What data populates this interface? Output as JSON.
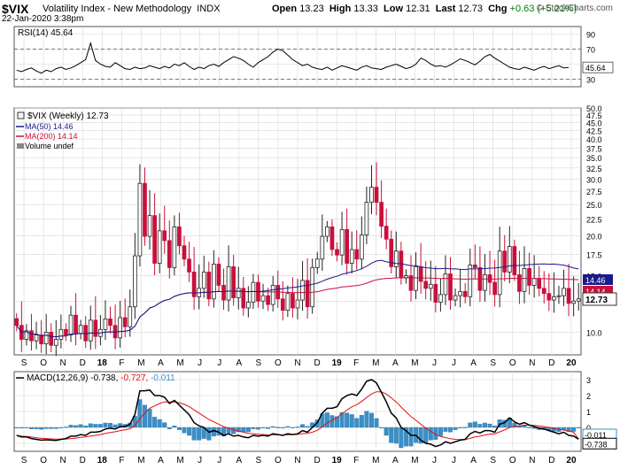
{
  "header": {
    "symbol": "$VIX",
    "name": "Volatility Index - New Methodology",
    "exchange": "INDX",
    "datetime": "22-Jan-2020 3:38pm",
    "open_label": "Open",
    "open": "13.23",
    "high_label": "High",
    "high": "13.33",
    "low_label": "Low",
    "low": "12.31",
    "last_label": "Last",
    "last": "12.73",
    "chg_label": "Chg",
    "chg": "+0.63 (+5.21%)",
    "source": "© StockCharts.com"
  },
  "colors": {
    "up": "#222222",
    "down": "#c8103c",
    "ma50": "#1a1a8c",
    "ma200": "#c8103c",
    "macd": "#000000",
    "signal": "#e01010",
    "hist": "#3a8fc8",
    "grid": "#d8d8d8"
  },
  "chart_data": [
    {
      "type": "line",
      "title": "RSI(14) 45.64",
      "legend_label": "RSI(14)",
      "legend_value": "45.64",
      "yticks": [
        "90",
        "70",
        "50",
        "30"
      ],
      "ylim": [
        20,
        100
      ],
      "reference_lines": [
        70,
        30
      ],
      "last_value_label": "45.64",
      "series": [
        {
          "name": "RSI(14)",
          "values": [
            42,
            40,
            43,
            45,
            41,
            38,
            42,
            40,
            44,
            46,
            43,
            45,
            48,
            52,
            56,
            78,
            55,
            50,
            47,
            46,
            52,
            48,
            44,
            43,
            46,
            44,
            45,
            48,
            46,
            44,
            47,
            45,
            50,
            48,
            52,
            47,
            43,
            46,
            44,
            48,
            50,
            47,
            52,
            56,
            60,
            58,
            55,
            50,
            46,
            52,
            56,
            60,
            66,
            70,
            68,
            62,
            56,
            52,
            48,
            50,
            46,
            44,
            43,
            46,
            42,
            45,
            48,
            46,
            44,
            42,
            46,
            48,
            45,
            44,
            43,
            46,
            48,
            50,
            47,
            44,
            46,
            50,
            58,
            55,
            50,
            47,
            48,
            46,
            49,
            53,
            57,
            55,
            52,
            49,
            54,
            60,
            63,
            58,
            54,
            50,
            46,
            44,
            43,
            46,
            44,
            42,
            45,
            47,
            44,
            46,
            48,
            45,
            45.64
          ]
        }
      ]
    },
    {
      "type": "candlestick",
      "title": "$VIX (Weekly) 12.73",
      "legend": [
        {
          "label": "$VIX (Weekly) 12.73"
        },
        {
          "label": "MA(50) 14.46"
        },
        {
          "label": "MA(200) 14.14"
        },
        {
          "label": "Volume undef"
        }
      ],
      "y_scale": "log",
      "ylim": [
        8.5,
        50
      ],
      "yticks": [
        "50.0",
        "47.5",
        "45.0",
        "42.5",
        "40.0",
        "37.5",
        "35.0",
        "32.5",
        "30.0",
        "27.5",
        "25.0",
        "22.5",
        "20.0",
        "17.5",
        "15.0",
        "12.5",
        "10.0"
      ],
      "right_labels": {
        "ma50": "14.46",
        "ma200": "14.14",
        "last": "12.73"
      },
      "x_start": "2017-09",
      "closes": [
        10.5,
        9.5,
        10.1,
        9.4,
        9.8,
        9.2,
        10.0,
        9.1,
        9.5,
        10.2,
        9.8,
        11.3,
        9.9,
        10.5,
        9.4,
        10.9,
        9.7,
        10.2,
        11.0,
        10.5,
        9.6,
        11.1,
        10.4,
        12.0,
        17.3,
        29.1,
        19.9,
        23.1,
        16.4,
        20.7,
        19.3,
        15.9,
        21.3,
        18.6,
        16.9,
        15.4,
        12.9,
        13.7,
        15.4,
        12.7,
        16.3,
        14.0,
        12.6,
        16.0,
        12.8,
        13.7,
        11.9,
        12.4,
        14.3,
        12.5,
        13.0,
        12.2,
        14.0,
        12.7,
        11.7,
        13.2,
        11.9,
        12.6,
        14.5,
        12.0,
        15.9,
        16.9,
        19.9,
        21.3,
        18.1,
        17.4,
        20.9,
        16.4,
        18.1,
        16.9,
        20.1,
        25.4,
        28.3,
        25.4,
        21.4,
        19.5,
        16.0,
        17.9,
        14.8,
        15.0,
        13.5,
        16.0,
        14.4,
        13.7,
        14.1,
        12.4,
        13.1,
        15.2,
        12.6,
        13.0,
        13.4,
        12.9,
        16.2,
        15.9,
        13.5,
        15.1,
        14.3,
        13.1,
        17.9,
        15.4,
        18.5,
        15.1,
        13.4,
        15.8,
        14.0,
        14.7,
        13.7,
        13.2,
        12.6,
        12.9,
        13.0,
        13.7,
        12.3,
        12.5,
        12.7
      ]
    },
    {
      "type": "line",
      "title": "MACD(12,26,9) -0.738, -0.727, -0.011",
      "legend_label": "MACD(12,26,9)",
      "legend_values": [
        "-0.738",
        "-0.727",
        "-0.011"
      ],
      "yticks": [
        "3",
        "2",
        "1",
        "0",
        "-1"
      ],
      "ylim": [
        -1.5,
        3.5
      ],
      "right_labels": {
        "hist": "-0.011",
        "macd": "-0.738"
      },
      "series": [
        {
          "name": "MACD",
          "values": [
            -0.5,
            -0.6,
            -0.6,
            -0.7,
            -0.75,
            -0.8,
            -0.78,
            -0.8,
            -0.82,
            -0.75,
            -0.7,
            -0.55,
            -0.55,
            -0.45,
            -0.5,
            -0.3,
            -0.3,
            -0.25,
            -0.1,
            -0.05,
            -0.1,
            0.05,
            0.05,
            0.2,
            0.8,
            2.3,
            2.3,
            2.35,
            2.0,
            2.0,
            1.9,
            1.5,
            1.7,
            1.4,
            1.1,
            0.8,
            0.3,
            0.1,
            0.0,
            -0.3,
            -0.2,
            -0.3,
            -0.5,
            -0.4,
            -0.55,
            -0.5,
            -0.6,
            -0.65,
            -0.5,
            -0.55,
            -0.5,
            -0.55,
            -0.4,
            -0.45,
            -0.5,
            -0.4,
            -0.45,
            -0.4,
            -0.2,
            -0.3,
            0.0,
            0.3,
            0.9,
            1.2,
            1.2,
            1.3,
            1.8,
            2.0,
            2.1,
            2.0,
            2.4,
            2.9,
            3.0,
            2.8,
            2.2,
            1.6,
            0.9,
            0.6,
            0.0,
            -0.2,
            -0.5,
            -0.5,
            -0.8,
            -1.0,
            -1.05,
            -1.2,
            -1.1,
            -0.9,
            -1.0,
            -0.9,
            -0.8,
            -0.75,
            -0.4,
            -0.25,
            -0.35,
            -0.2,
            -0.2,
            -0.3,
            0.2,
            0.3,
            0.6,
            0.35,
            0.2,
            0.3,
            0.15,
            0.05,
            -0.05,
            -0.1,
            -0.2,
            -0.3,
            -0.4,
            -0.3,
            -0.5,
            -0.55,
            -0.738
          ]
        },
        {
          "name": "Signal",
          "values": [
            -0.5,
            -0.55,
            -0.57,
            -0.6,
            -0.65,
            -0.68,
            -0.7,
            -0.72,
            -0.74,
            -0.74,
            -0.73,
            -0.7,
            -0.67,
            -0.63,
            -0.6,
            -0.54,
            -0.5,
            -0.45,
            -0.38,
            -0.32,
            -0.27,
            -0.2,
            -0.15,
            -0.08,
            0.1,
            0.55,
            0.9,
            1.2,
            1.35,
            1.5,
            1.6,
            1.6,
            1.6,
            1.55,
            1.45,
            1.3,
            1.1,
            0.9,
            0.7,
            0.5,
            0.35,
            0.2,
            0.05,
            -0.05,
            -0.15,
            -0.22,
            -0.3,
            -0.37,
            -0.4,
            -0.43,
            -0.45,
            -0.47,
            -0.46,
            -0.46,
            -0.47,
            -0.46,
            -0.45,
            -0.44,
            -0.39,
            -0.37,
            -0.3,
            -0.18,
            0.04,
            0.28,
            0.45,
            0.62,
            0.86,
            1.09,
            1.29,
            1.43,
            1.63,
            1.88,
            2.1,
            2.24,
            2.23,
            2.1,
            1.86,
            1.6,
            1.28,
            0.98,
            0.68,
            0.45,
            0.2,
            -0.05,
            -0.25,
            -0.44,
            -0.57,
            -0.64,
            -0.71,
            -0.75,
            -0.76,
            -0.76,
            -0.69,
            -0.6,
            -0.55,
            -0.48,
            -0.42,
            -0.4,
            -0.28,
            -0.16,
            0.0,
            0.07,
            0.1,
            0.14,
            0.14,
            0.12,
            0.09,
            0.05,
            0.0,
            -0.06,
            -0.13,
            -0.16,
            -0.23,
            -0.3,
            -0.727
          ]
        }
      ]
    }
  ],
  "x_axis": {
    "labels": [
      {
        "label": "S",
        "bold": false
      },
      {
        "label": "O",
        "bold": false
      },
      {
        "label": "N",
        "bold": false
      },
      {
        "label": "D",
        "bold": false
      },
      {
        "label": "18",
        "bold": true
      },
      {
        "label": "F",
        "bold": false
      },
      {
        "label": "M",
        "bold": false
      },
      {
        "label": "A",
        "bold": false
      },
      {
        "label": "M",
        "bold": false
      },
      {
        "label": "J",
        "bold": false
      },
      {
        "label": "J",
        "bold": false
      },
      {
        "label": "A",
        "bold": false
      },
      {
        "label": "S",
        "bold": false
      },
      {
        "label": "O",
        "bold": false
      },
      {
        "label": "N",
        "bold": false
      },
      {
        "label": "D",
        "bold": false
      },
      {
        "label": "19",
        "bold": true
      },
      {
        "label": "F",
        "bold": false
      },
      {
        "label": "M",
        "bold": false
      },
      {
        "label": "A",
        "bold": false
      },
      {
        "label": "M",
        "bold": false
      },
      {
        "label": "J",
        "bold": false
      },
      {
        "label": "J",
        "bold": false
      },
      {
        "label": "A",
        "bold": false
      },
      {
        "label": "S",
        "bold": false
      },
      {
        "label": "O",
        "bold": false
      },
      {
        "label": "N",
        "bold": false
      },
      {
        "label": "D",
        "bold": false
      },
      {
        "label": "20",
        "bold": true
      }
    ]
  }
}
